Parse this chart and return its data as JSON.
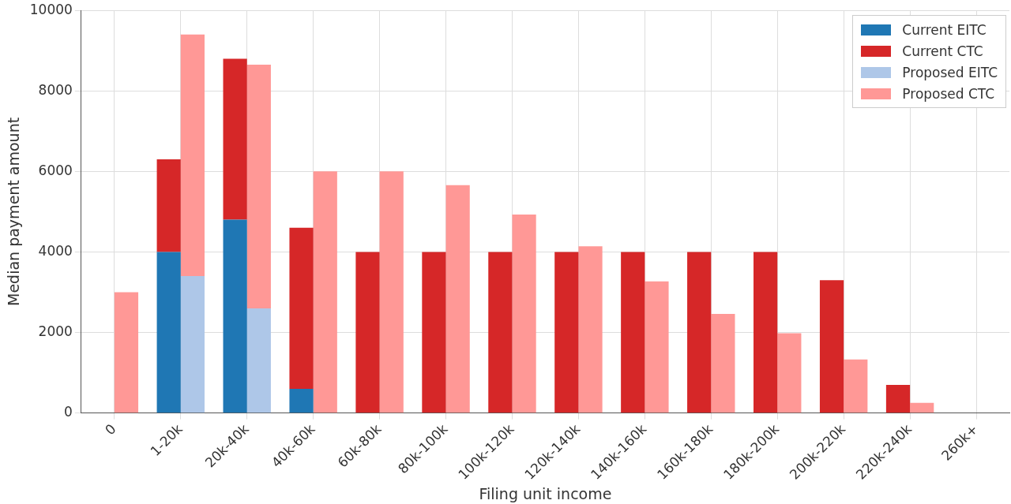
{
  "chart_data": {
    "type": "bar",
    "xlabel": "Filing unit income",
    "ylabel": "Median payment amount",
    "categories": [
      "0",
      "1-20k",
      "20k-40k",
      "40k-60k",
      "60k-80k",
      "80k-100k",
      "100k-120k",
      "120k-140k",
      "140k-160k",
      "160k-180k",
      "180k-200k",
      "200k-220k",
      "220k-240k",
      "260k+"
    ],
    "series": [
      {
        "name": "Current EITC",
        "color": "#1f77b4",
        "values": [
          0,
          4000,
          4800,
          600,
          0,
          0,
          0,
          0,
          0,
          0,
          0,
          0,
          0,
          0
        ]
      },
      {
        "name": "Current CTC",
        "color": "#d62728",
        "base": [
          null,
          4000,
          4800,
          600,
          0,
          0,
          0,
          0,
          0,
          0,
          0,
          0,
          0,
          null
        ],
        "values": [
          null,
          2300,
          4000,
          4000,
          4000,
          4000,
          4000,
          4000,
          4000,
          4000,
          4000,
          3300,
          700,
          null
        ]
      },
      {
        "name": "Proposed EITC",
        "color": "#aec7e8",
        "values": [
          0,
          3400,
          2600,
          0,
          0,
          0,
          0,
          0,
          0,
          0,
          0,
          0,
          0,
          0
        ]
      },
      {
        "name": "Proposed CTC",
        "color": "#ff9896",
        "base": [
          0,
          3400,
          2600,
          0,
          0,
          0,
          0,
          0,
          0,
          0,
          0,
          0,
          0,
          null
        ],
        "values": [
          3000,
          6000,
          6050,
          6000,
          6000,
          5660,
          4930,
          4140,
          3270,
          2460,
          1980,
          1330,
          250,
          null
        ]
      }
    ],
    "ylim": [
      0,
      10000
    ],
    "yticks": [
      0,
      2000,
      4000,
      6000,
      8000,
      10000
    ],
    "grid": true,
    "legend": "top right"
  }
}
